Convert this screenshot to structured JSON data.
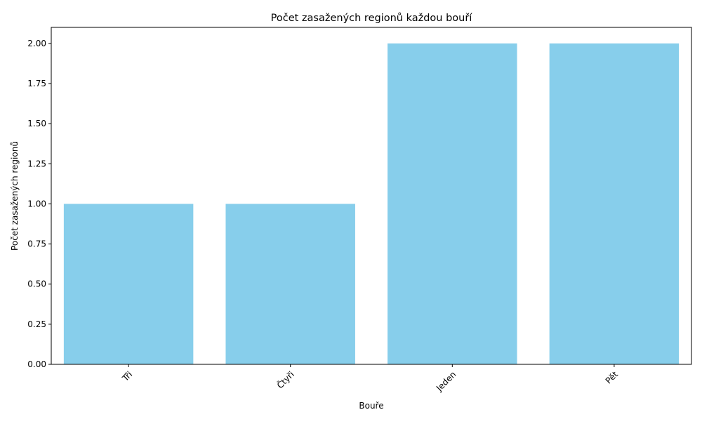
{
  "chart_data": {
    "type": "bar",
    "title": "Počet zasažených regionů každou bouří",
    "xlabel": "Bouře",
    "ylabel": "Počet zasažených regionů",
    "categories": [
      "Tři",
      "Čtyři",
      "Jeden",
      "Pět"
    ],
    "values": [
      1,
      1,
      2,
      2
    ],
    "ylim": [
      0,
      2.1
    ],
    "yticks": [
      "0.00",
      "0.25",
      "0.50",
      "0.75",
      "1.00",
      "1.25",
      "1.50",
      "1.75",
      "2.00"
    ],
    "x_tick_rotation": "45 degrees",
    "grid": false,
    "legend": "none",
    "bar_color": "#87CEEB"
  }
}
